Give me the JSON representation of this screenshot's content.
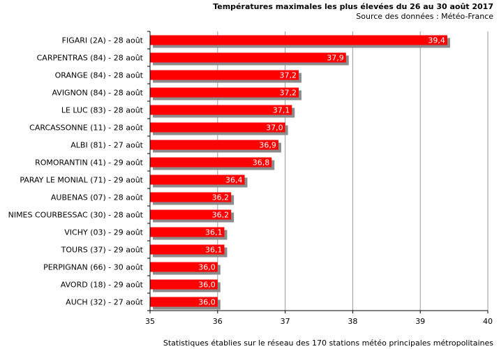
{
  "chart_data": {
    "type": "bar",
    "orientation": "horizontal",
    "title": "Températures maximales les plus élevées du 26 au 30 août 2017",
    "subtitle": "Source des données : Météo-France",
    "footnote": "Statistiques établies sur le réseau des 170 stations météo principales métropolitaines",
    "categories": [
      "FIGARI (2A) - 28 août",
      "CARPENTRAS (84) - 28 août",
      "ORANGE (84) - 28 août",
      "AVIGNON (84) - 28 août",
      "LE LUC (83) - 28 août",
      "CARCASSONNE (11) - 28 août",
      "ALBI (81) - 27 août",
      "ROMORANTIN (41) - 29 août",
      "PARAY LE MONIAL (71) - 29 août",
      "AUBENAS (07) - 28 août",
      "NIMES COURBESSAC (30) - 28 août",
      "VICHY (03) - 29 août",
      "TOURS (37) - 29 août",
      "PERPIGNAN (66) - 30 août",
      "AVORD (18) - 29 août",
      "AUCH (32) - 27 août"
    ],
    "values": [
      39.4,
      37.9,
      37.2,
      37.2,
      37.1,
      37.0,
      36.9,
      36.8,
      36.4,
      36.2,
      36.2,
      36.1,
      36.1,
      36.0,
      36.0,
      36.0
    ],
    "value_labels": [
      "39,4",
      "37,9",
      "37,2",
      "37,2",
      "37,1",
      "37,0",
      "36,9",
      "36,8",
      "36,4",
      "36,2",
      "36,2",
      "36,1",
      "36,1",
      "36,0",
      "36,0",
      "36,0"
    ],
    "xlim": [
      35,
      40
    ],
    "xticks": [
      "35",
      "36",
      "37",
      "38",
      "39",
      "40"
    ],
    "grid": true,
    "legend": false,
    "bar_color": "#ff0000",
    "shadow_color": "#8c8c8c"
  }
}
